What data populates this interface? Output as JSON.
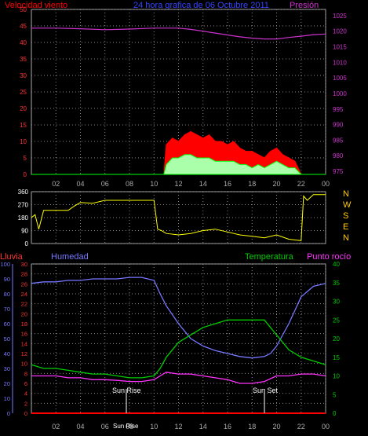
{
  "header": {
    "wind_label": "Velocidad viento",
    "title": "24 hora grafica de 06 Octubre 2011",
    "pressure_label": "Presión"
  },
  "bottom_header": {
    "rain_label": "Lluvia",
    "humidity_label": "Humedad",
    "temp_label": "Temperatura",
    "dew_label": "Punto rocío"
  },
  "annotations": {
    "sunrise": "Sun Rise",
    "sunset": "Sun Set",
    "sunrise_time": "Sun Rise"
  },
  "colors": {
    "wind": "#ff0000",
    "gust": "#ff0000",
    "avgwind": "#00ff00",
    "pressure": "#cc33cc",
    "direction": "#ffff00",
    "rain": "#ff0000",
    "humidity": "#7777ff",
    "temperature": "#00cc00",
    "dewpoint": "#ff33ff",
    "grid": "#888888"
  },
  "chart_data": [
    {
      "type": "area",
      "name": "wind-pressure",
      "x_ticks": [
        "02",
        "04",
        "06",
        "08",
        "10",
        "12",
        "14",
        "16",
        "18",
        "20",
        "22",
        "00"
      ],
      "left_axis": {
        "label": "Velocidad viento",
        "ticks": [
          0,
          5,
          10,
          15,
          20,
          25,
          30,
          35,
          40,
          45,
          50
        ],
        "ylim": [
          0,
          50
        ]
      },
      "right_axis": {
        "label": "Presión",
        "ticks": [
          975,
          980,
          985,
          990,
          995,
          1000,
          1005,
          1010,
          1015,
          1020,
          1025
        ],
        "ylim": [
          974,
          1027
        ]
      },
      "series": [
        {
          "key": "gust",
          "axis": "left",
          "x": [
            0,
            10.8,
            11,
            11.5,
            12,
            12.5,
            13,
            13.5,
            14,
            14.5,
            15,
            15.5,
            16,
            16.5,
            17,
            17.5,
            18,
            18.5,
            19,
            19.5,
            20,
            20.5,
            21,
            21.5,
            22,
            24
          ],
          "y": [
            0,
            0,
            9,
            11,
            10,
            12,
            13,
            12,
            11,
            12,
            10,
            10,
            9,
            10,
            8,
            7,
            7,
            6,
            5,
            7,
            8,
            6,
            5,
            4,
            0,
            0
          ]
        },
        {
          "key": "avgwind",
          "axis": "left",
          "x": [
            0,
            10.8,
            11,
            11.5,
            12,
            12.5,
            13,
            13.5,
            14,
            14.5,
            15,
            15.5,
            16,
            16.5,
            17,
            17.5,
            18,
            18.5,
            19,
            19.5,
            20,
            20.5,
            21,
            21.5,
            22,
            24
          ],
          "y": [
            0,
            0,
            3,
            5,
            5,
            6,
            6,
            5,
            5,
            5,
            4,
            4,
            4,
            4,
            3,
            3,
            2,
            3,
            2,
            3,
            4,
            3,
            2,
            2,
            0,
            0
          ]
        },
        {
          "key": "pressure",
          "axis": "right",
          "x": [
            0,
            2,
            4,
            6,
            8,
            10,
            11,
            12,
            13,
            14,
            15,
            16,
            17,
            18,
            19,
            20,
            21,
            22,
            23,
            24
          ],
          "y": [
            1021,
            1021,
            1020.8,
            1020.5,
            1020.7,
            1021,
            1021,
            1021,
            1020.6,
            1020,
            1019.4,
            1018.8,
            1018.2,
            1017.8,
            1017.5,
            1017.5,
            1018,
            1018.4,
            1018.9,
            1019.1
          ]
        }
      ]
    },
    {
      "type": "line",
      "name": "wind-direction",
      "x_ticks": [
        "02",
        "04",
        "06",
        "08",
        "10",
        "12",
        "14",
        "16",
        "18",
        "20",
        "22",
        "00"
      ],
      "left_axis": {
        "ticks": [
          0,
          90,
          180,
          270,
          360
        ],
        "ylim": [
          0,
          360
        ]
      },
      "right_axis": {
        "ticks": [
          "N",
          "W",
          "S",
          "E",
          "N"
        ]
      },
      "series": [
        {
          "key": "direction",
          "x": [
            0,
            0.3,
            0.6,
            1,
            1.5,
            2,
            3,
            3.5,
            4,
            5,
            6,
            7,
            8,
            9,
            10,
            10.3,
            10.6,
            11,
            12,
            13,
            14,
            15,
            16,
            17,
            18,
            19,
            20,
            21,
            22,
            22.2,
            22.5,
            23,
            24
          ],
          "y": [
            180,
            200,
            100,
            230,
            230,
            230,
            230,
            260,
            285,
            280,
            300,
            300,
            300,
            300,
            300,
            100,
            90,
            70,
            60,
            70,
            90,
            100,
            80,
            60,
            50,
            40,
            60,
            30,
            20,
            330,
            300,
            340,
            340
          ]
        }
      ]
    },
    {
      "type": "line",
      "name": "humidity-temperature",
      "x_ticks": [
        "02",
        "04",
        "06",
        "08",
        "10",
        "12",
        "14",
        "16",
        "18",
        "20",
        "22",
        "00"
      ],
      "left_axis_humidity": {
        "label": "Humedad",
        "ticks": [
          0,
          10,
          20,
          30,
          40,
          50,
          60,
          70,
          80,
          90,
          100
        ],
        "ylim": [
          0,
          100
        ]
      },
      "left_axis_rain": {
        "label": "Lluvia",
        "ticks": [
          0,
          2,
          4,
          6,
          8,
          10,
          12,
          14,
          16,
          18,
          20,
          22,
          24,
          26,
          28,
          30
        ],
        "ylim": [
          0,
          30
        ]
      },
      "right_axis": {
        "label": "Temperatura",
        "ticks": [
          0,
          5,
          10,
          15,
          20,
          25,
          30,
          35,
          40
        ],
        "ylim": [
          0,
          40
        ]
      },
      "series": [
        {
          "key": "humidity",
          "axis": "humidity",
          "x": [
            0,
            1,
            2,
            3,
            4,
            5,
            6,
            7,
            8,
            9,
            10,
            10.5,
            11,
            12,
            13,
            14,
            15,
            16,
            17,
            18,
            19,
            19.5,
            20,
            21,
            22,
            23,
            24
          ],
          "y": [
            87,
            88,
            88,
            89,
            89,
            90,
            90,
            90,
            91,
            91,
            89,
            80,
            72,
            60,
            50,
            45,
            42,
            40,
            38,
            37,
            38,
            40,
            45,
            60,
            78,
            85,
            87
          ]
        },
        {
          "key": "temperature",
          "axis": "temp",
          "x": [
            0,
            1,
            2,
            3,
            4,
            5,
            6,
            7,
            8,
            9,
            10,
            10.5,
            11,
            12,
            13,
            14,
            15,
            16,
            17,
            18,
            19,
            20,
            21,
            22,
            23,
            24
          ],
          "y": [
            13,
            12,
            12,
            11.5,
            11,
            10.5,
            10.5,
            10,
            9.5,
            9.5,
            10,
            12,
            15,
            19,
            21,
            23,
            24,
            25,
            25,
            25,
            25,
            21,
            17,
            15,
            14,
            13
          ]
        },
        {
          "key": "dewpoint",
          "axis": "temp",
          "x": [
            0,
            1,
            2,
            3,
            4,
            5,
            6,
            7,
            8,
            9,
            10,
            10.5,
            11,
            12,
            13,
            14,
            15,
            16,
            17,
            18,
            19,
            20,
            21,
            22,
            23,
            24
          ],
          "y": [
            10,
            10,
            10,
            9.5,
            9.5,
            9,
            9,
            8.8,
            8.5,
            8.5,
            9,
            10,
            11,
            10.5,
            10.5,
            10,
            9.5,
            9,
            8,
            8,
            8.5,
            10,
            10,
            10.5,
            10.5,
            10
          ]
        },
        {
          "key": "rain",
          "axis": "rain",
          "x": [
            0,
            24
          ],
          "y": [
            0,
            0
          ]
        }
      ]
    }
  ]
}
